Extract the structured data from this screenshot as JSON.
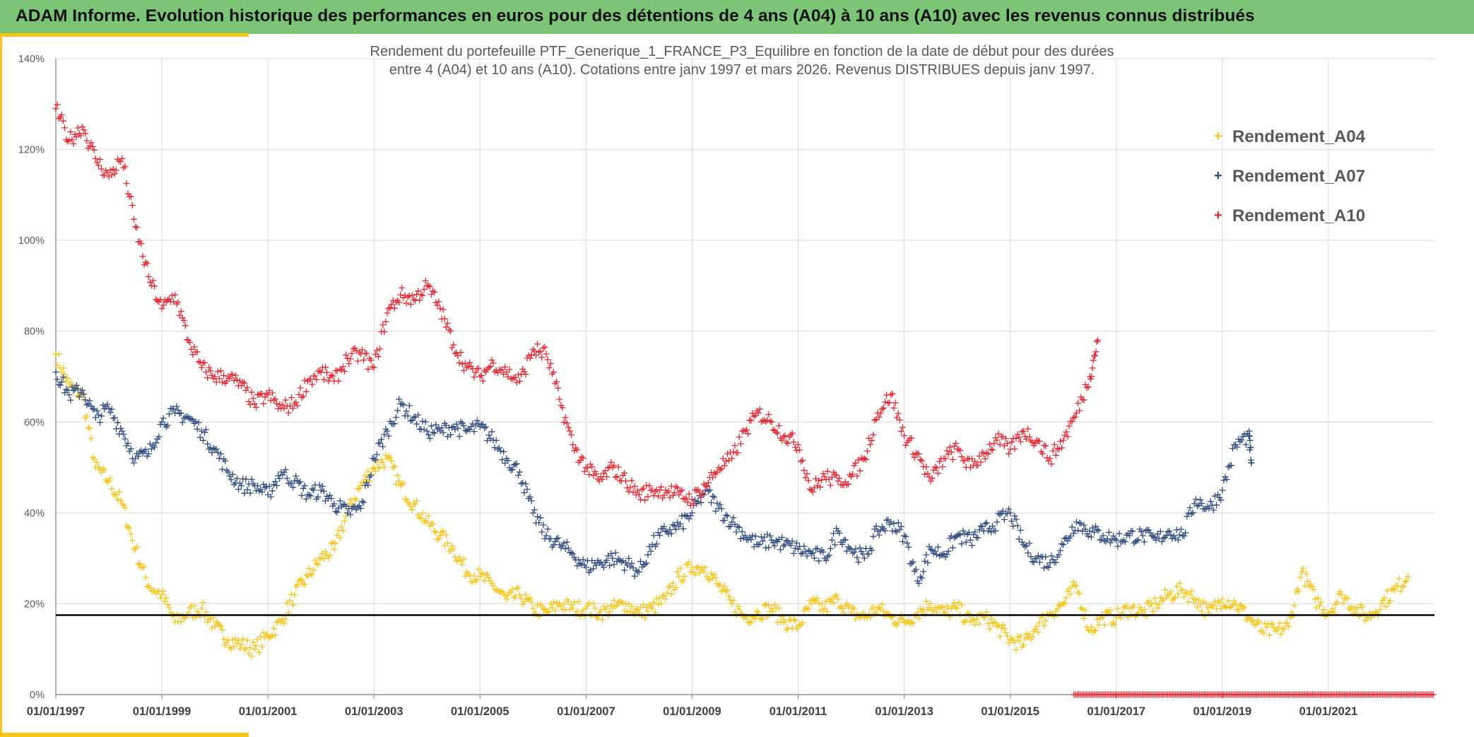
{
  "header": {
    "title": "ADAM Informe. Evolution historique des performances en euros pour des détentions de 4 ans (A04) à 10 ans (A10) avec les revenus connus distribués"
  },
  "colors": {
    "header_bg": "#7cc576",
    "accent": "#f5c518",
    "A04": "#f5c518",
    "A07": "#2e4a7d",
    "A10": "#e32630",
    "reference_line": "#000000"
  },
  "chart_data": {
    "type": "scatter",
    "title_line1": "Rendement du portefeuille PTF_Generique_1_FRANCE_P3_Equilibre  en fonction de la date de début pour des durées",
    "title_line2": "entre 4 (A04) et 10 ans (A10). Cotations entre janv 1997 et mars 2026. Revenus DISTRIBUES depuis janv 1997.",
    "xlabel": "",
    "ylabel": "",
    "x_range": [
      "1997-01-01",
      "2023-01-01"
    ],
    "ylim": [
      0,
      140
    ],
    "y_ticks": [
      "0%",
      "20%",
      "40%",
      "60%",
      "80%",
      "100%",
      "120%",
      "140%"
    ],
    "x_ticks": [
      "01/01/1997",
      "01/01/1999",
      "01/01/2001",
      "01/01/2003",
      "01/01/2005",
      "01/01/2007",
      "01/01/2009",
      "01/01/2011",
      "01/01/2013",
      "01/01/2015",
      "01/01/2017",
      "01/01/2019",
      "01/01/2021"
    ],
    "grid": true,
    "legend_position": "top-right",
    "reference_line_y": 17.5,
    "series": [
      {
        "name": "Rendement_A04",
        "marker": "+",
        "points": [
          [
            1997.0,
            75
          ],
          [
            1997.25,
            68
          ],
          [
            1997.5,
            66
          ],
          [
            1997.75,
            50
          ],
          [
            1998.0,
            47
          ],
          [
            1998.25,
            42
          ],
          [
            1998.5,
            32
          ],
          [
            1998.75,
            24
          ],
          [
            1999.0,
            22
          ],
          [
            1999.25,
            16
          ],
          [
            1999.5,
            18
          ],
          [
            1999.75,
            19
          ],
          [
            2000.0,
            15
          ],
          [
            2000.25,
            12
          ],
          [
            2000.5,
            11
          ],
          [
            2000.75,
            10
          ],
          [
            2001.0,
            13
          ],
          [
            2001.25,
            16
          ],
          [
            2001.5,
            22
          ],
          [
            2001.75,
            26
          ],
          [
            2002.0,
            30
          ],
          [
            2002.25,
            32
          ],
          [
            2002.5,
            40
          ],
          [
            2002.75,
            46
          ],
          [
            2003.0,
            50
          ],
          [
            2003.25,
            52
          ],
          [
            2003.5,
            46
          ],
          [
            2003.75,
            42
          ],
          [
            2004.0,
            38
          ],
          [
            2004.25,
            35
          ],
          [
            2004.5,
            32
          ],
          [
            2004.75,
            27
          ],
          [
            2005.0,
            26
          ],
          [
            2005.25,
            24
          ],
          [
            2005.5,
            21
          ],
          [
            2005.75,
            22
          ],
          [
            2006.0,
            19
          ],
          [
            2006.25,
            18
          ],
          [
            2006.5,
            20
          ],
          [
            2006.75,
            19
          ],
          [
            2007.0,
            19
          ],
          [
            2007.25,
            18
          ],
          [
            2007.5,
            19
          ],
          [
            2007.75,
            20
          ],
          [
            2008.0,
            18
          ],
          [
            2008.25,
            19
          ],
          [
            2008.5,
            21
          ],
          [
            2008.75,
            26
          ],
          [
            2009.0,
            28
          ],
          [
            2009.25,
            28
          ],
          [
            2009.5,
            24
          ],
          [
            2009.75,
            20
          ],
          [
            2010.0,
            17
          ],
          [
            2010.25,
            18
          ],
          [
            2010.5,
            19
          ],
          [
            2010.75,
            16
          ],
          [
            2011.0,
            15
          ],
          [
            2011.25,
            20
          ],
          [
            2011.5,
            19
          ],
          [
            2011.75,
            21
          ],
          [
            2012.0,
            18
          ],
          [
            2012.25,
            17
          ],
          [
            2012.5,
            19
          ],
          [
            2012.75,
            17
          ],
          [
            2013.0,
            16
          ],
          [
            2013.25,
            18
          ],
          [
            2013.5,
            20
          ],
          [
            2013.75,
            18
          ],
          [
            2014.0,
            19
          ],
          [
            2014.25,
            16
          ],
          [
            2014.5,
            17
          ],
          [
            2014.75,
            15
          ],
          [
            2015.0,
            12
          ],
          [
            2015.25,
            11
          ],
          [
            2015.5,
            15
          ],
          [
            2015.75,
            18
          ],
          [
            2016.0,
            20
          ],
          [
            2016.25,
            24
          ],
          [
            2016.5,
            14
          ],
          [
            2016.75,
            17
          ],
          [
            2017.0,
            17
          ],
          [
            2017.25,
            19
          ],
          [
            2017.5,
            18
          ],
          [
            2017.75,
            20
          ],
          [
            2018.0,
            22
          ],
          [
            2018.25,
            23
          ],
          [
            2018.5,
            21
          ],
          [
            2018.75,
            18
          ],
          [
            2019.0,
            21
          ],
          [
            2019.25,
            20
          ],
          [
            2019.5,
            17
          ],
          [
            2019.75,
            14
          ],
          [
            2020.0,
            14
          ],
          [
            2020.25,
            15
          ],
          [
            2020.5,
            27
          ],
          [
            2020.75,
            21
          ],
          [
            2021.0,
            18
          ],
          [
            2021.25,
            22
          ],
          [
            2021.5,
            19
          ],
          [
            2021.75,
            17
          ],
          [
            2022.0,
            20
          ],
          [
            2022.25,
            23
          ],
          [
            2022.5,
            26
          ]
        ]
      },
      {
        "name": "Rendement_A07",
        "marker": "+",
        "points": [
          [
            1997.0,
            71
          ],
          [
            1997.25,
            66
          ],
          [
            1997.5,
            67
          ],
          [
            1997.75,
            61
          ],
          [
            1998.0,
            63
          ],
          [
            1998.25,
            58
          ],
          [
            1998.5,
            52
          ],
          [
            1998.75,
            53
          ],
          [
            1999.0,
            60
          ],
          [
            1999.25,
            62
          ],
          [
            1999.5,
            61
          ],
          [
            1999.75,
            58
          ],
          [
            2000.0,
            54
          ],
          [
            2000.25,
            49
          ],
          [
            2000.5,
            46
          ],
          [
            2000.75,
            46
          ],
          [
            2001.0,
            44
          ],
          [
            2001.25,
            49
          ],
          [
            2001.5,
            47
          ],
          [
            2001.75,
            44
          ],
          [
            2002.0,
            45
          ],
          [
            2002.25,
            42
          ],
          [
            2002.5,
            40
          ],
          [
            2002.75,
            41
          ],
          [
            2003.0,
            52
          ],
          [
            2003.25,
            58
          ],
          [
            2003.5,
            64
          ],
          [
            2003.75,
            61
          ],
          [
            2004.0,
            58
          ],
          [
            2004.25,
            58
          ],
          [
            2004.5,
            59
          ],
          [
            2004.75,
            58
          ],
          [
            2005.0,
            59
          ],
          [
            2005.25,
            56
          ],
          [
            2005.5,
            52
          ],
          [
            2005.75,
            49
          ],
          [
            2006.0,
            40
          ],
          [
            2006.25,
            35
          ],
          [
            2006.5,
            33
          ],
          [
            2006.75,
            31
          ],
          [
            2007.0,
            28
          ],
          [
            2007.25,
            29
          ],
          [
            2007.5,
            30
          ],
          [
            2007.75,
            29
          ],
          [
            2008.0,
            27
          ],
          [
            2008.25,
            33
          ],
          [
            2008.5,
            36
          ],
          [
            2008.75,
            37
          ],
          [
            2009.0,
            40
          ],
          [
            2009.25,
            45
          ],
          [
            2009.5,
            41
          ],
          [
            2009.75,
            38
          ],
          [
            2010.0,
            35
          ],
          [
            2010.25,
            33
          ],
          [
            2010.5,
            34
          ],
          [
            2010.75,
            33
          ],
          [
            2011.0,
            32
          ],
          [
            2011.25,
            31
          ],
          [
            2011.5,
            30
          ],
          [
            2011.75,
            36
          ],
          [
            2012.0,
            32
          ],
          [
            2012.25,
            30
          ],
          [
            2012.5,
            36
          ],
          [
            2012.75,
            38
          ],
          [
            2013.0,
            35
          ],
          [
            2013.25,
            25
          ],
          [
            2013.5,
            32
          ],
          [
            2013.75,
            31
          ],
          [
            2014.0,
            35
          ],
          [
            2014.25,
            34
          ],
          [
            2014.5,
            36
          ],
          [
            2014.75,
            38
          ],
          [
            2015.0,
            40
          ],
          [
            2015.25,
            33
          ],
          [
            2015.5,
            30
          ],
          [
            2015.75,
            29
          ],
          [
            2016.0,
            33
          ],
          [
            2016.25,
            38
          ],
          [
            2016.5,
            36
          ],
          [
            2016.75,
            35
          ],
          [
            2017.0,
            34
          ],
          [
            2017.25,
            35
          ],
          [
            2017.5,
            35
          ],
          [
            2017.75,
            34
          ],
          [
            2018.0,
            36
          ],
          [
            2018.25,
            35
          ],
          [
            2018.5,
            43
          ],
          [
            2018.75,
            41
          ],
          [
            2019.0,
            45
          ],
          [
            2019.25,
            55
          ],
          [
            2019.5,
            57
          ],
          [
            2019.55,
            51
          ]
        ]
      },
      {
        "name": "Rendement_A10",
        "marker": "+",
        "points": [
          [
            1997.0,
            129
          ],
          [
            1997.25,
            122
          ],
          [
            1997.5,
            125
          ],
          [
            1997.75,
            118
          ],
          [
            1998.0,
            114
          ],
          [
            1998.25,
            118
          ],
          [
            1998.5,
            103
          ],
          [
            1998.75,
            92
          ],
          [
            1999.0,
            85
          ],
          [
            1999.25,
            88
          ],
          [
            1999.5,
            78
          ],
          [
            1999.75,
            72
          ],
          [
            2000.0,
            70
          ],
          [
            2000.25,
            70
          ],
          [
            2000.5,
            68
          ],
          [
            2000.75,
            64
          ],
          [
            2001.0,
            66
          ],
          [
            2001.25,
            63
          ],
          [
            2001.5,
            64
          ],
          [
            2001.75,
            69
          ],
          [
            2002.0,
            71
          ],
          [
            2002.25,
            69
          ],
          [
            2002.5,
            74
          ],
          [
            2002.75,
            75
          ],
          [
            2003.0,
            72
          ],
          [
            2003.25,
            84
          ],
          [
            2003.5,
            88
          ],
          [
            2003.75,
            87
          ],
          [
            2004.0,
            90
          ],
          [
            2004.25,
            85
          ],
          [
            2004.5,
            77
          ],
          [
            2004.75,
            72
          ],
          [
            2005.0,
            70
          ],
          [
            2005.25,
            73
          ],
          [
            2005.5,
            71
          ],
          [
            2005.75,
            69
          ],
          [
            2006.0,
            76
          ],
          [
            2006.25,
            75
          ],
          [
            2006.5,
            65
          ],
          [
            2006.75,
            55
          ],
          [
            2007.0,
            50
          ],
          [
            2007.25,
            47
          ],
          [
            2007.5,
            50
          ],
          [
            2007.75,
            47
          ],
          [
            2008.0,
            44
          ],
          [
            2008.25,
            45
          ],
          [
            2008.5,
            45
          ],
          [
            2008.75,
            44
          ],
          [
            2009.0,
            43
          ],
          [
            2009.25,
            46
          ],
          [
            2009.5,
            50
          ],
          [
            2009.75,
            52
          ],
          [
            2010.0,
            58
          ],
          [
            2010.25,
            62
          ],
          [
            2010.5,
            60
          ],
          [
            2010.75,
            57
          ],
          [
            2011.0,
            55
          ],
          [
            2011.25,
            45
          ],
          [
            2011.5,
            48
          ],
          [
            2011.75,
            47
          ],
          [
            2012.0,
            48
          ],
          [
            2012.25,
            52
          ],
          [
            2012.5,
            62
          ],
          [
            2012.75,
            66
          ],
          [
            2013.0,
            57
          ],
          [
            2013.25,
            53
          ],
          [
            2013.5,
            47
          ],
          [
            2013.75,
            52
          ],
          [
            2014.0,
            54
          ],
          [
            2014.25,
            50
          ],
          [
            2014.5,
            53
          ],
          [
            2014.75,
            56
          ],
          [
            2015.0,
            54
          ],
          [
            2015.25,
            58
          ],
          [
            2015.5,
            56
          ],
          [
            2015.75,
            52
          ],
          [
            2016.0,
            56
          ],
          [
            2016.25,
            62
          ],
          [
            2016.5,
            70
          ],
          [
            2016.65,
            78
          ]
        ]
      },
      {
        "name": "",
        "marker": "+",
        "color": "#e32630",
        "flat_from": 2016.2,
        "flat_to": 2023.0,
        "flat_y": 0
      }
    ]
  },
  "legend": {
    "items": [
      {
        "marker": "+",
        "label": "Rendement_A04"
      },
      {
        "marker": "+",
        "label": "Rendement_A07"
      },
      {
        "marker": "+",
        "label": "Rendement_A10"
      }
    ]
  }
}
